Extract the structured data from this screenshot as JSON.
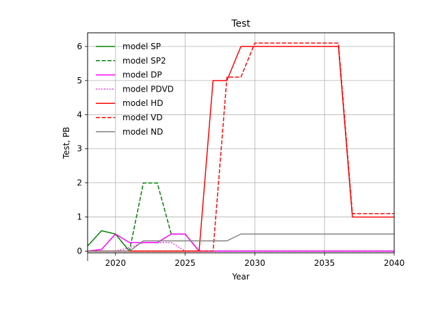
{
  "chart_data": {
    "type": "line",
    "title": "Test",
    "xlabel": "Year",
    "ylabel": "Test, PB",
    "xlim": [
      2018,
      2040
    ],
    "ylim": [
      -0.05,
      6.4
    ],
    "xticks": [
      2020,
      2025,
      2030,
      2035,
      2040
    ],
    "yticks": [
      0,
      1,
      2,
      3,
      4,
      5,
      6
    ],
    "grid": true,
    "legend": "top-left",
    "series": [
      {
        "name": "model SP",
        "color": "#008000",
        "dash": "solid",
        "points": [
          [
            2018,
            0.15
          ],
          [
            2019,
            0.6
          ],
          [
            2020,
            0.5
          ],
          [
            2021,
            0.0
          ],
          [
            2040,
            0.0
          ]
        ]
      },
      {
        "name": "model SP2",
        "color": "#008000",
        "dash": "dashed",
        "points": [
          [
            2018,
            0.0
          ],
          [
            2021,
            0.0
          ],
          [
            2022,
            2.0
          ],
          [
            2023,
            2.0
          ],
          [
            2024,
            0.5
          ],
          [
            2025,
            0.5
          ],
          [
            2026,
            0.0
          ],
          [
            2040,
            0.0
          ]
        ]
      },
      {
        "name": "model DP",
        "color": "#ff00ff",
        "dash": "solid",
        "points": [
          [
            2018,
            0.0
          ],
          [
            2019,
            0.05
          ],
          [
            2020,
            0.5
          ],
          [
            2021,
            0.25
          ],
          [
            2023,
            0.25
          ],
          [
            2024,
            0.5
          ],
          [
            2025,
            0.5
          ],
          [
            2026,
            0.0
          ],
          [
            2040,
            0.0
          ]
        ]
      },
      {
        "name": "model PDVD",
        "color": "#ff00ff",
        "dash": "dotted",
        "points": [
          [
            2018,
            0.0
          ],
          [
            2020,
            0.0
          ],
          [
            2021,
            0.1
          ],
          [
            2022,
            0.25
          ],
          [
            2024,
            0.25
          ],
          [
            2025,
            0.0
          ],
          [
            2040,
            0.0
          ]
        ]
      },
      {
        "name": "model HD",
        "color": "#ff0000",
        "dash": "solid",
        "points": [
          [
            2018,
            0.0
          ],
          [
            2026,
            0.0
          ],
          [
            2027,
            5.0
          ],
          [
            2028,
            5.0
          ],
          [
            2029,
            6.0
          ],
          [
            2036,
            6.0
          ],
          [
            2037,
            1.0
          ],
          [
            2040,
            1.0
          ]
        ]
      },
      {
        "name": "model VD",
        "color": "#ff0000",
        "dash": "dashed",
        "points": [
          [
            2018,
            0.0
          ],
          [
            2027,
            0.0
          ],
          [
            2028,
            5.1
          ],
          [
            2029,
            5.1
          ],
          [
            2030,
            6.1
          ],
          [
            2036,
            6.1
          ],
          [
            2037,
            1.1
          ],
          [
            2040,
            1.1
          ]
        ]
      },
      {
        "name": "model ND",
        "color": "#808080",
        "dash": "solid",
        "points": [
          [
            2018,
            0.0
          ],
          [
            2020,
            0.0
          ],
          [
            2021,
            0.0
          ],
          [
            2022,
            0.3
          ],
          [
            2026,
            0.3
          ],
          [
            2028,
            0.3
          ],
          [
            2029,
            0.5
          ],
          [
            2040,
            0.5
          ]
        ]
      }
    ]
  }
}
